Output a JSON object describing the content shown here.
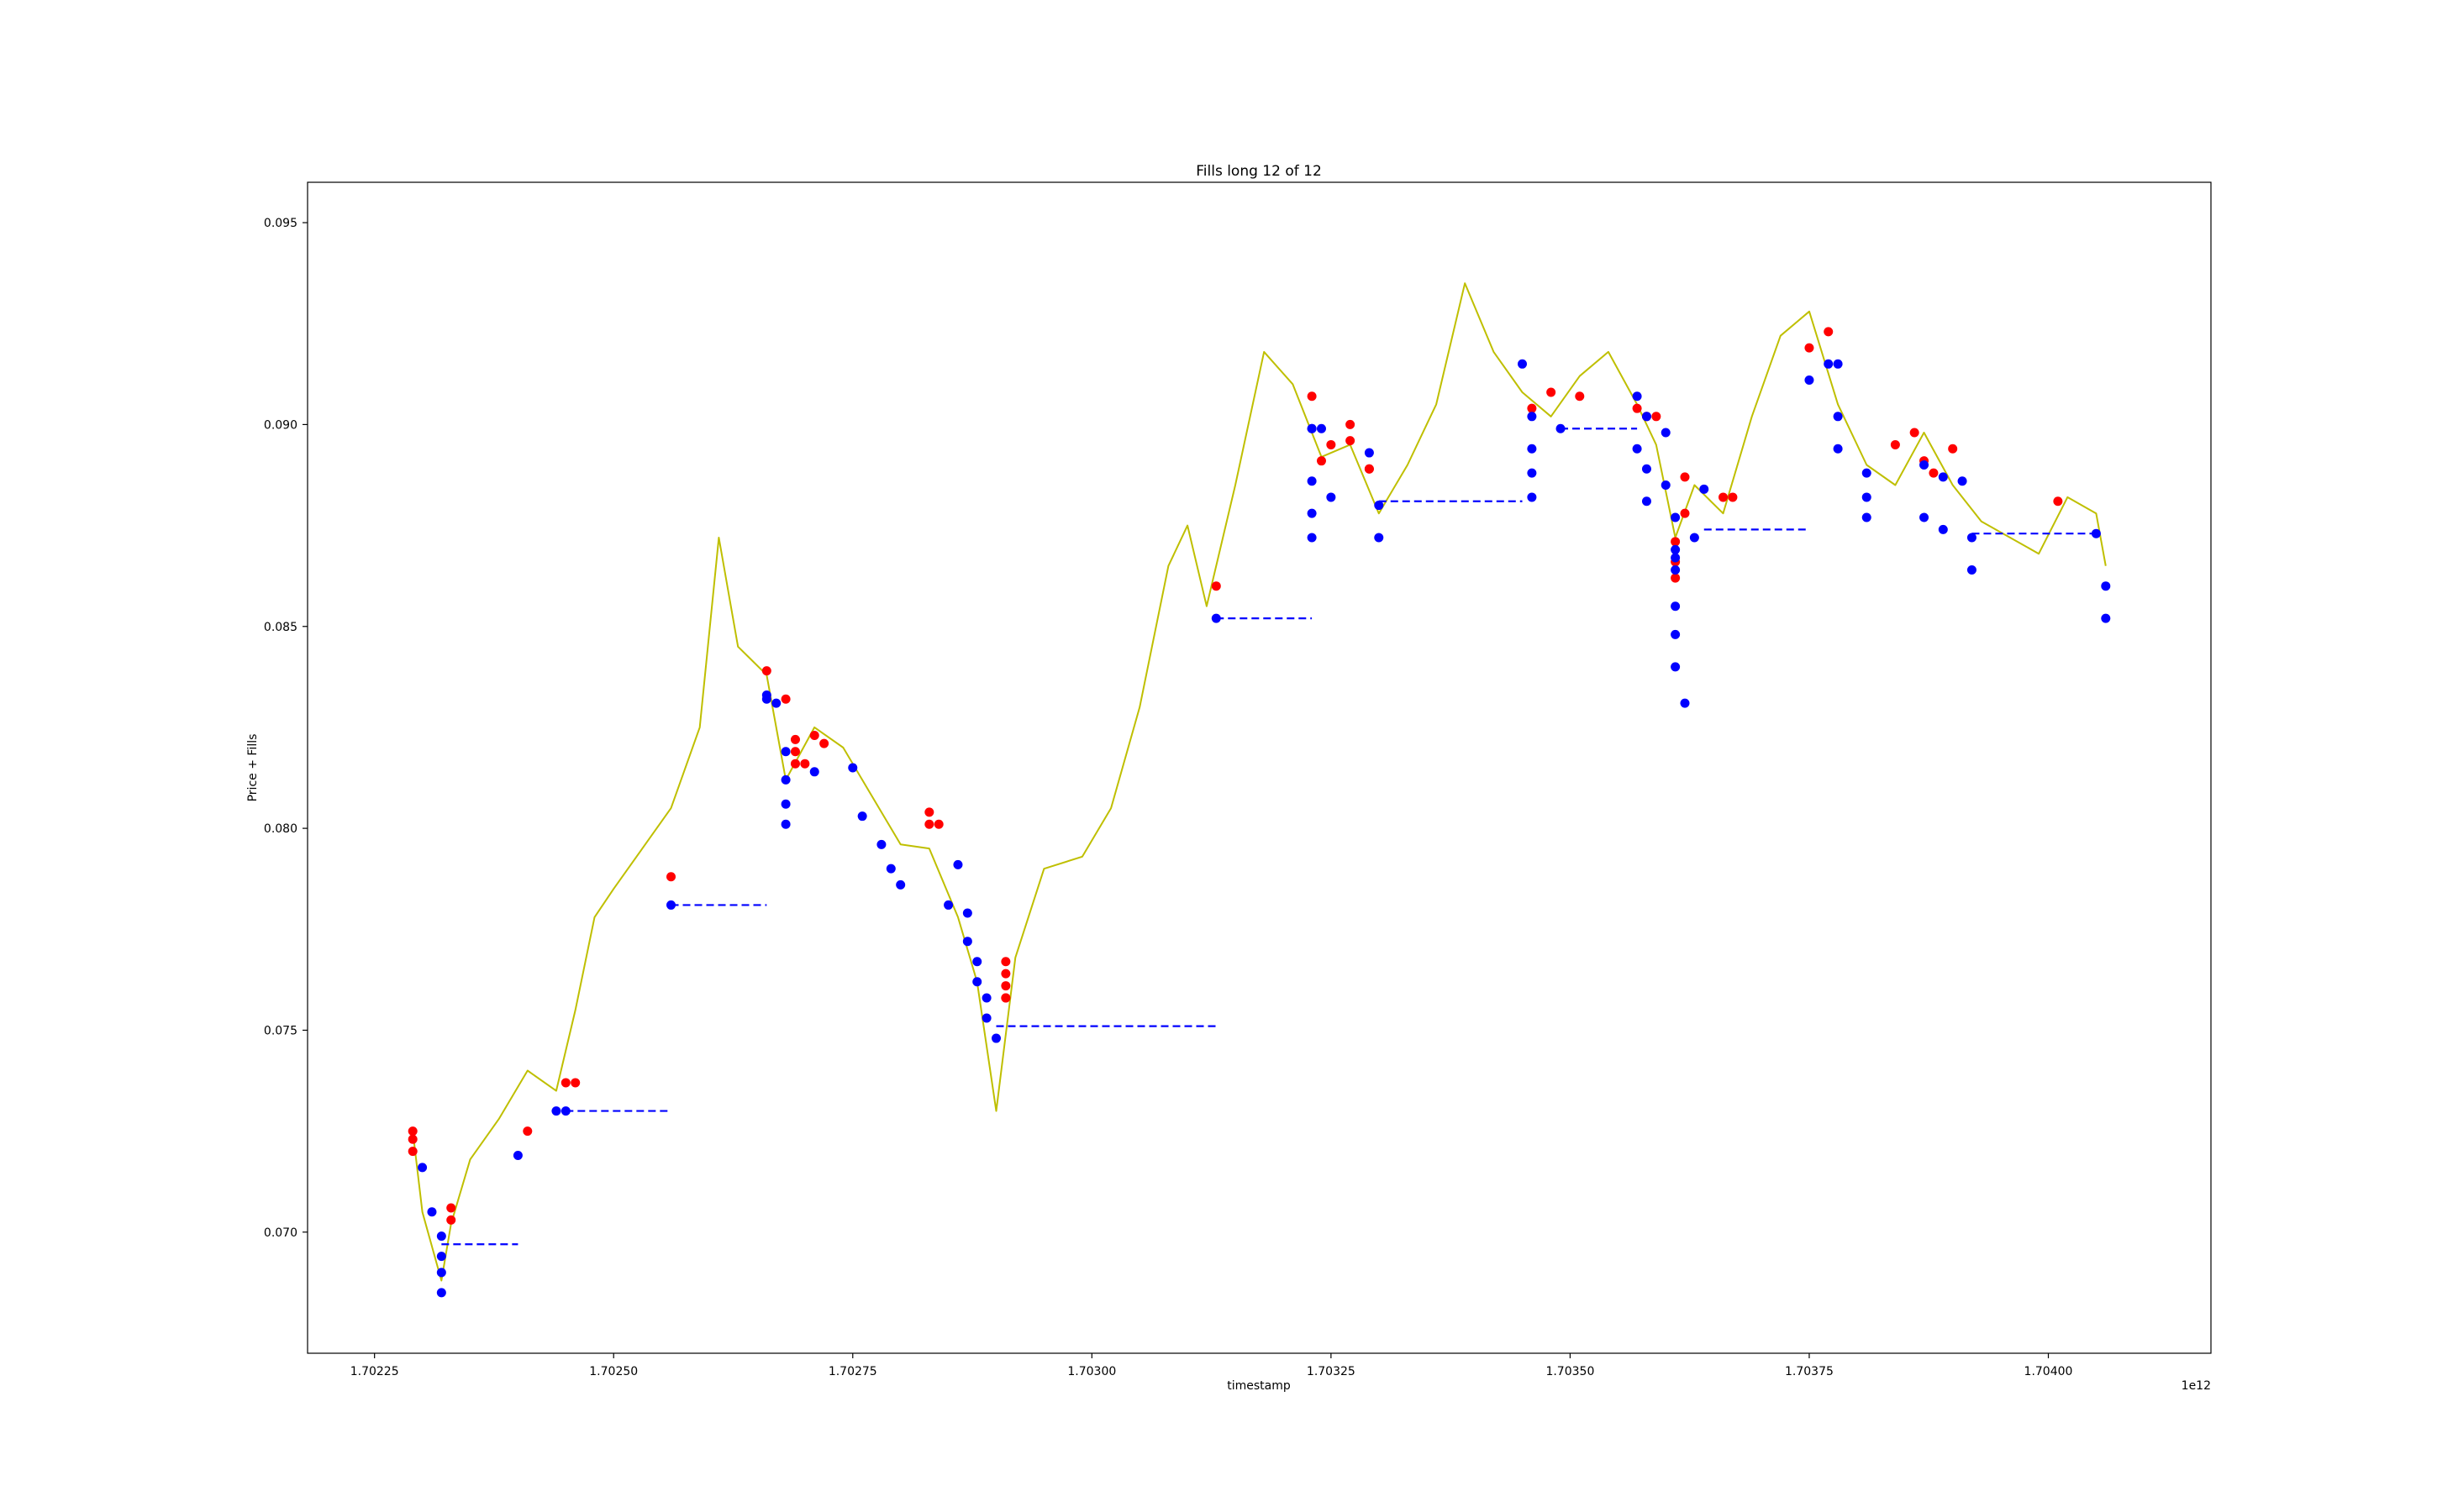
{
  "chart_data": {
    "type": "line",
    "title": "Fills long 12 of 12",
    "xlabel": "timestamp",
    "ylabel": "Price + Fills",
    "x_offset_label": "1e12",
    "xlim": [
      1.70218,
      1.70417
    ],
    "ylim": [
      0.067,
      0.096
    ],
    "xticks": [
      1.70225,
      1.7025,
      1.70275,
      1.703,
      1.70325,
      1.7035,
      1.70375,
      1.704
    ],
    "xtick_labels": [
      "1.70225",
      "1.70250",
      "1.70275",
      "1.70300",
      "1.70325",
      "1.70350",
      "1.70375",
      "1.70400"
    ],
    "yticks": [
      0.07,
      0.075,
      0.08,
      0.085,
      0.09,
      0.095
    ],
    "ytick_labels": [
      "0.070",
      "0.075",
      "0.080",
      "0.085",
      "0.090",
      "0.095"
    ],
    "grid": false,
    "colors": {
      "price": "#bfbf00",
      "buy_fill": "#0000ff",
      "sell_fill": "#ff0000",
      "position_price": "#0000ff",
      "close_price": "#000000"
    },
    "series": [
      {
        "kind": "price",
        "x": [
          1.70229,
          1.7023,
          1.70232,
          1.70233,
          1.70235,
          1.70238,
          1.70241,
          1.70244,
          1.70246,
          1.70248,
          1.7025,
          1.70253,
          1.70256,
          1.70259,
          1.70261,
          1.70263,
          1.70266,
          1.70268,
          1.70271,
          1.70274,
          1.70277,
          1.7028,
          1.70283,
          1.70286,
          1.70288,
          1.7029,
          1.70292,
          1.70295,
          1.70299,
          1.70302,
          1.70305,
          1.70308,
          1.7031,
          1.70312,
          1.70315,
          1.70318,
          1.70321,
          1.70324,
          1.70327,
          1.7033,
          1.70333,
          1.70336,
          1.70339,
          1.70342,
          1.70345,
          1.70348,
          1.70351,
          1.70354,
          1.70357,
          1.70359,
          1.70361,
          1.70363,
          1.70366,
          1.70369,
          1.70372,
          1.70375,
          1.70378,
          1.70381,
          1.70384,
          1.70387,
          1.7039,
          1.70393,
          1.70396,
          1.70399,
          1.70402,
          1.70405,
          1.70406
        ],
        "y": [
          0.0725,
          0.0705,
          0.0688,
          0.0702,
          0.0718,
          0.0728,
          0.074,
          0.0735,
          0.0755,
          0.0778,
          0.0785,
          0.0795,
          0.0805,
          0.0825,
          0.0872,
          0.0845,
          0.0838,
          0.0812,
          0.0825,
          0.082,
          0.0808,
          0.0796,
          0.0795,
          0.0778,
          0.0762,
          0.073,
          0.0768,
          0.079,
          0.0793,
          0.0805,
          0.083,
          0.0865,
          0.0875,
          0.0855,
          0.0885,
          0.0918,
          0.091,
          0.0892,
          0.0895,
          0.0878,
          0.089,
          0.0905,
          0.0935,
          0.0918,
          0.0908,
          0.0902,
          0.0912,
          0.0918,
          0.0905,
          0.0895,
          0.0872,
          0.0885,
          0.0878,
          0.0902,
          0.0922,
          0.0928,
          0.0905,
          0.089,
          0.0885,
          0.0898,
          0.0885,
          0.0876,
          0.0872,
          0.0868,
          0.0882,
          0.0878,
          0.0865
        ]
      }
    ],
    "sell_fills": {
      "x": [
        1.70229,
        1.70229,
        1.70229,
        1.70233,
        1.70233,
        1.70241,
        1.70245,
        1.70246,
        1.70256,
        1.70266,
        1.70268,
        1.70269,
        1.70269,
        1.70269,
        1.7027,
        1.70271,
        1.70272,
        1.70283,
        1.70283,
        1.70284,
        1.70291,
        1.70291,
        1.70291,
        1.70291,
        1.70291,
        1.70313,
        1.70323,
        1.70324,
        1.70325,
        1.70327,
        1.70327,
        1.70329,
        1.70329,
        1.70346,
        1.70348,
        1.70351,
        1.70357,
        1.70358,
        1.70359,
        1.70361,
        1.70361,
        1.70361,
        1.70362,
        1.70362,
        1.70366,
        1.70367,
        1.70375,
        1.70377,
        1.70384,
        1.70386,
        1.70387,
        1.70388,
        1.7039,
        1.70401
      ],
      "y": [
        0.0725,
        0.0723,
        0.072,
        0.0706,
        0.0703,
        0.0725,
        0.0737,
        0.0737,
        0.0788,
        0.0839,
        0.0832,
        0.0822,
        0.0819,
        0.0816,
        0.0816,
        0.0823,
        0.0821,
        0.0801,
        0.0804,
        0.0801,
        0.0767,
        0.0764,
        0.0761,
        0.0758,
        0.0758,
        0.086,
        0.0907,
        0.0891,
        0.0895,
        0.09,
        0.0896,
        0.0889,
        0.0889,
        0.0904,
        0.0908,
        0.0907,
        0.0904,
        0.0902,
        0.0902,
        0.0866,
        0.0862,
        0.0871,
        0.0878,
        0.0887,
        0.0882,
        0.0882,
        0.0919,
        0.0923,
        0.0895,
        0.0898,
        0.0891,
        0.0888,
        0.0894,
        0.0881
      ]
    },
    "buy_fills": {
      "x": [
        1.7023,
        1.70231,
        1.70232,
        1.70232,
        1.70232,
        1.70232,
        1.7024,
        1.70244,
        1.70245,
        1.70256,
        1.70266,
        1.70266,
        1.70267,
        1.70268,
        1.70268,
        1.70268,
        1.70268,
        1.70271,
        1.70275,
        1.70276,
        1.70278,
        1.70279,
        1.7028,
        1.70285,
        1.70286,
        1.70287,
        1.70287,
        1.70288,
        1.70288,
        1.70289,
        1.70289,
        1.7029,
        1.70313,
        1.70323,
        1.70323,
        1.70323,
        1.70323,
        1.70323,
        1.70324,
        1.70325,
        1.70329,
        1.7033,
        1.7033,
        1.70345,
        1.70346,
        1.70346,
        1.70346,
        1.70346,
        1.70349,
        1.70357,
        1.70357,
        1.70358,
        1.70358,
        1.70358,
        1.7036,
        1.7036,
        1.70361,
        1.70361,
        1.70361,
        1.70361,
        1.70361,
        1.70361,
        1.70361,
        1.70362,
        1.70363,
        1.70364,
        1.70375,
        1.70377,
        1.70378,
        1.70378,
        1.70378,
        1.70381,
        1.70381,
        1.70381,
        1.70387,
        1.70387,
        1.70389,
        1.70389,
        1.70391,
        1.70392,
        1.70392,
        1.70405,
        1.70406,
        1.70406
      ],
      "y": [
        0.0716,
        0.0705,
        0.0699,
        0.0694,
        0.069,
        0.0685,
        0.0719,
        0.073,
        0.073,
        0.0781,
        0.0833,
        0.0832,
        0.0831,
        0.0819,
        0.0812,
        0.0806,
        0.0801,
        0.0814,
        0.0815,
        0.0803,
        0.0796,
        0.079,
        0.0786,
        0.0781,
        0.0791,
        0.0779,
        0.0772,
        0.0767,
        0.0762,
        0.0758,
        0.0753,
        0.0748,
        0.0852,
        0.0899,
        0.0899,
        0.0886,
        0.0878,
        0.0872,
        0.0899,
        0.0882,
        0.0893,
        0.088,
        0.0872,
        0.0915,
        0.0902,
        0.0894,
        0.0888,
        0.0882,
        0.0899,
        0.0907,
        0.0894,
        0.0902,
        0.0889,
        0.0881,
        0.0898,
        0.0885,
        0.0877,
        0.0869,
        0.0867,
        0.0864,
        0.0855,
        0.0848,
        0.084,
        0.0831,
        0.0872,
        0.0884,
        0.0911,
        0.0915,
        0.0915,
        0.0902,
        0.0894,
        0.0888,
        0.0882,
        0.0877,
        0.089,
        0.0877,
        0.0887,
        0.0874,
        0.0886,
        0.0872,
        0.0864,
        0.0873,
        0.086,
        0.0852
      ]
    },
    "position_price_segments": [
      {
        "x": [
          1.70232,
          1.7024
        ],
        "y": 0.0697
      },
      {
        "x": [
          1.70245,
          1.70256
        ],
        "y": 0.073
      },
      {
        "x": [
          1.70256,
          1.70266
        ],
        "y": 0.0781
      },
      {
        "x": [
          1.7029,
          1.70313
        ],
        "y": 0.0751
      },
      {
        "x": [
          1.70313,
          1.70323
        ],
        "y": 0.0852
      },
      {
        "x": [
          1.7033,
          1.70345
        ],
        "y": 0.0881
      },
      {
        "x": [
          1.70349,
          1.70357
        ],
        "y": 0.0899
      },
      {
        "x": [
          1.70364,
          1.70375
        ],
        "y": 0.0874
      },
      {
        "x": [
          1.70392,
          1.70405
        ],
        "y": 0.0873
      }
    ]
  }
}
